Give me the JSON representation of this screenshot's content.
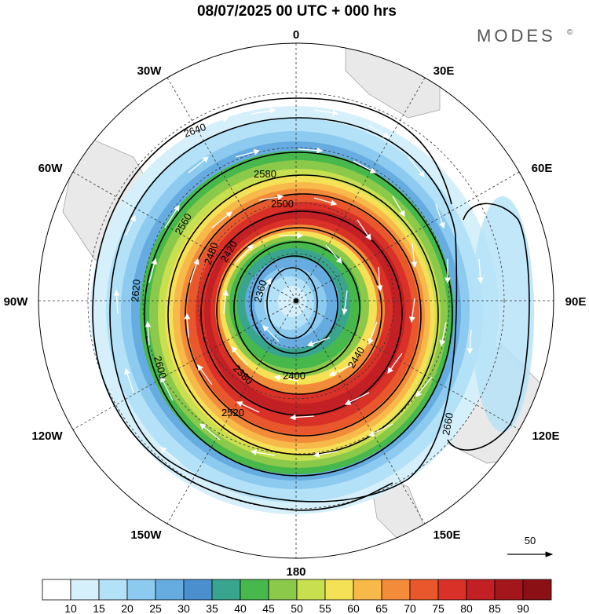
{
  "title": "08/07/2025  00 UTC  + 000 hrs",
  "brand": "MODES",
  "brand_mark": "©",
  "longitude_labels": [
    {
      "text": "0",
      "angle": 0
    },
    {
      "text": "30E",
      "angle": 30
    },
    {
      "text": "60E",
      "angle": 60
    },
    {
      "text": "90E",
      "angle": 90
    },
    {
      "text": "120E",
      "angle": 120
    },
    {
      "text": "150E",
      "angle": 150
    },
    {
      "text": "180",
      "angle": 180
    },
    {
      "text": "150W",
      "angle": 210
    },
    {
      "text": "120W",
      "angle": 240
    },
    {
      "text": "90W",
      "angle": 270
    },
    {
      "text": "60W",
      "angle": 300
    },
    {
      "text": "30W",
      "angle": 330
    }
  ],
  "contour_labels": [
    "2360",
    "2380",
    "2400",
    "2420",
    "2440",
    "2480",
    "2500",
    "2520",
    "2560",
    "2580",
    "2600",
    "2620",
    "2640",
    "2660"
  ],
  "reference_vector": "50",
  "colorbar": {
    "ticks": [
      "10",
      "15",
      "20",
      "25",
      "30",
      "35",
      "40",
      "45",
      "50",
      "55",
      "60",
      "65",
      "70",
      "75",
      "80",
      "85",
      "90"
    ],
    "colors": [
      "#ffffff",
      "#d6f0fb",
      "#b3e1f7",
      "#8ccaf0",
      "#66ace0",
      "#4b8fcf",
      "#3aa58f",
      "#47b84b",
      "#8bc94a",
      "#c8df50",
      "#f5e156",
      "#f7b94a",
      "#f38c3a",
      "#e8582c",
      "#d93127",
      "#c22024",
      "#a3161c",
      "#8a1016"
    ]
  }
}
